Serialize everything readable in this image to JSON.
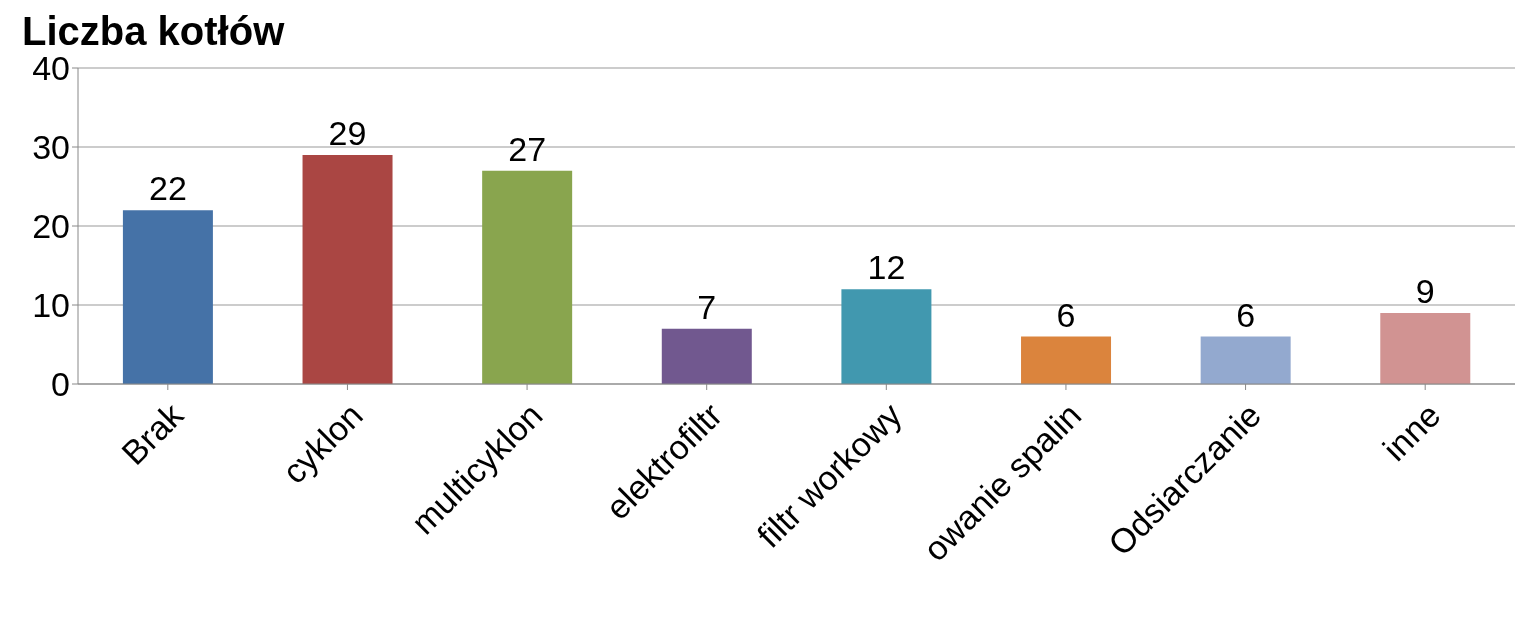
{
  "chart_data": {
    "type": "bar",
    "title": "Liczba kotłów",
    "categories": [
      "Brak",
      "cyklon",
      "multicyklon",
      "elektrofiltr",
      "filtr workowy",
      "owanie spalin",
      "Odsiarczanie",
      "inne"
    ],
    "values": [
      22,
      29,
      27,
      7,
      12,
      6,
      6,
      9
    ],
    "colors": [
      "#4572a7",
      "#aa4643",
      "#89a54e",
      "#71588f",
      "#4198af",
      "#db843d",
      "#93a9cf",
      "#d19392"
    ],
    "ylim": [
      0,
      40
    ],
    "yticks": [
      0,
      10,
      20,
      30,
      40
    ],
    "grid": "y",
    "data_labels": true
  }
}
